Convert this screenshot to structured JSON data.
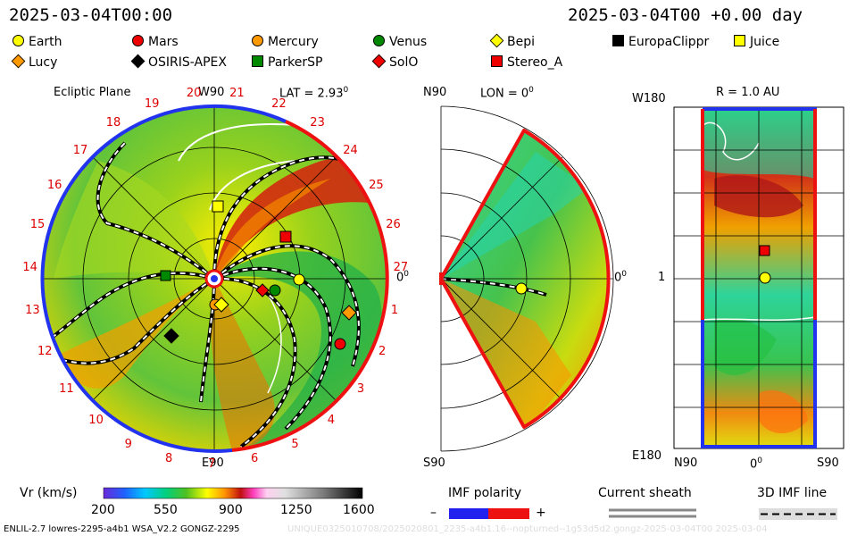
{
  "header": {
    "datetime_left": "2025-03-04T00:00",
    "datetime_right": "2025-03-04T00 +0.00 day"
  },
  "legend": [
    {
      "name": "Earth",
      "color": "#ffff00",
      "shape": "circle"
    },
    {
      "name": "Mars",
      "color": "#ee0000",
      "shape": "circle"
    },
    {
      "name": "Mercury",
      "color": "#ff9900",
      "shape": "circle"
    },
    {
      "name": "Venus",
      "color": "#008800",
      "shape": "circle"
    },
    {
      "name": "Bepi",
      "color": "#ffff00",
      "shape": "diamond"
    },
    {
      "name": "EuropaClippr",
      "color": "#000000",
      "shape": "square"
    },
    {
      "name": "Juice",
      "color": "#ffff00",
      "shape": "square"
    },
    {
      "name": "Lucy",
      "color": "#ff9900",
      "shape": "diamond"
    },
    {
      "name": "OSIRIS-APEX",
      "color": "#000000",
      "shape": "diamond"
    },
    {
      "name": "ParkerSP",
      "color": "#008800",
      "shape": "square"
    },
    {
      "name": "SolO",
      "color": "#ee0000",
      "shape": "diamond"
    },
    {
      "name": "Stereo_A",
      "color": "#ee0000",
      "shape": "square"
    }
  ],
  "ecliptic": {
    "title": "Ecliptic Plane",
    "top": "W90",
    "lat": "LAT = 2.93",
    "lat_sup": "0",
    "right_zero": "0",
    "right_zero_sup": "0",
    "bottom": "E90",
    "rotations": [
      "1",
      "2",
      "3",
      "4",
      "5",
      "6",
      "7",
      "8",
      "9",
      "10",
      "11",
      "12",
      "13",
      "14",
      "15",
      "16",
      "17",
      "18",
      "19",
      "20",
      "21",
      "22",
      "23",
      "24",
      "25",
      "26",
      "27"
    ]
  },
  "meridional": {
    "top_left": "N90",
    "lon": "LON = 0",
    "lon_sup": "0",
    "right_zero": "0",
    "right_zero_sup": "0",
    "bottom_left": "S90"
  },
  "radial": {
    "title": "R = 1.0 AU",
    "top_left": "W180",
    "mid_left": "1",
    "bottom_left": "E180",
    "x_left": "N90",
    "x_mid": "0",
    "x_mid_sup": "0",
    "x_right": "S90"
  },
  "colorbar": {
    "label": "Vr (km/s)",
    "ticks": [
      "200",
      "550",
      "900",
      "1250",
      "1600"
    ]
  },
  "imf": {
    "label": "IMF polarity",
    "minus": "–",
    "plus": "+"
  },
  "sheath": {
    "label": "Current sheath"
  },
  "imf3d": {
    "label": "3D IMF line"
  },
  "footer": {
    "left": "ENLIL-2.7 lowres-2295-a4b1 WSA_V2.2 GONGZ-2295",
    "right": "UNIQUE0325010708/2025020801_2235-a4b1.16--nopturned--1g53d5d2.gongz-2025-03-04T00   2025-03-04"
  }
}
